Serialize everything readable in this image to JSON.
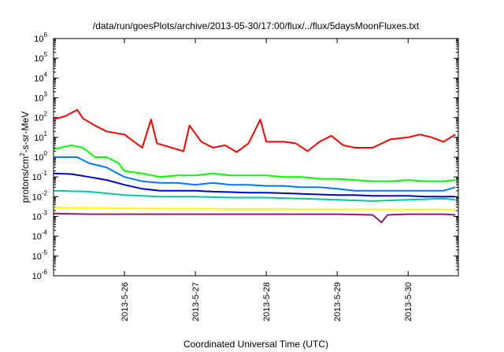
{
  "chart_data": {
    "type": "line",
    "title": "/data/run/goesPlots/archive/2013-05-30/17:00/flux/../flux/5daysMoonFluxes.txt",
    "xlabel": "Coordinated Universal Time (UTC)",
    "ylabel": {
      "prefix": "protons/cm",
      "sup": "2",
      "suffix": "-s-sr-MeV"
    },
    "y_scale": "log",
    "ylim": [
      1e-06,
      1000000.0
    ],
    "y_ticks": [
      {
        "base": "10",
        "exp": "-6"
      },
      {
        "base": "10",
        "exp": "-5"
      },
      {
        "base": "10",
        "exp": "-4"
      },
      {
        "base": "10",
        "exp": "-3"
      },
      {
        "base": "10",
        "exp": "-2"
      },
      {
        "base": "10",
        "exp": "-1"
      },
      {
        "base": "10",
        "exp": "0"
      },
      {
        "base": "10",
        "exp": "1"
      },
      {
        "base": "10",
        "exp": "2"
      },
      {
        "base": "10",
        "exp": "3"
      },
      {
        "base": "10",
        "exp": "4"
      },
      {
        "base": "10",
        "exp": "5"
      },
      {
        "base": "10",
        "exp": "6"
      }
    ],
    "xlim": [
      "2013-05-25T00:00",
      "2013-05-30T17:00"
    ],
    "x_ticks": [
      "2013-5-26",
      "2013-5-27",
      "2013-5-28",
      "2013-5-29",
      "2013-5-30"
    ],
    "grid": false,
    "series": [
      {
        "color": "#ff0000",
        "points": [
          [
            "2013-05-25T00:00",
            80
          ],
          [
            "2013-05-25T04:00",
            120
          ],
          [
            "2013-05-25T08:00",
            250
          ],
          [
            "2013-05-25T10:00",
            90
          ],
          [
            "2013-05-25T14:00",
            40
          ],
          [
            "2013-05-25T18:00",
            20
          ],
          [
            "2013-05-26T00:00",
            14
          ],
          [
            "2013-05-26T04:00",
            5
          ],
          [
            "2013-05-26T06:00",
            3
          ],
          [
            "2013-05-26T09:00",
            80
          ],
          [
            "2013-05-26T11:00",
            5
          ],
          [
            "2013-05-26T16:00",
            3
          ],
          [
            "2013-05-26T20:00",
            2
          ],
          [
            "2013-05-26T22:00",
            40
          ],
          [
            "2013-05-27T02:00",
            6
          ],
          [
            "2013-05-27T06:00",
            3
          ],
          [
            "2013-05-27T10:00",
            4
          ],
          [
            "2013-05-27T14:00",
            1.8
          ],
          [
            "2013-05-27T18:00",
            5
          ],
          [
            "2013-05-27T22:00",
            80
          ],
          [
            "2013-05-28T00:00",
            6
          ],
          [
            "2013-05-28T06:00",
            6
          ],
          [
            "2013-05-28T10:00",
            5
          ],
          [
            "2013-05-28T14:00",
            2
          ],
          [
            "2013-05-28T18:00",
            6
          ],
          [
            "2013-05-28T22:00",
            12
          ],
          [
            "2013-05-29T02:00",
            4
          ],
          [
            "2013-05-29T06:00",
            3
          ],
          [
            "2013-05-29T12:00",
            3
          ],
          [
            "2013-05-29T18:00",
            8
          ],
          [
            "2013-05-30T00:00",
            10
          ],
          [
            "2013-05-30T04:00",
            14
          ],
          [
            "2013-05-30T08:00",
            10
          ],
          [
            "2013-05-30T12:00",
            6
          ],
          [
            "2013-05-30T16:00",
            14
          ]
        ]
      },
      {
        "color": "#00ff00",
        "points": [
          [
            "2013-05-25T00:00",
            2.5
          ],
          [
            "2013-05-25T06:00",
            4
          ],
          [
            "2013-05-25T10:00",
            3
          ],
          [
            "2013-05-25T14:00",
            1
          ],
          [
            "2013-05-25T18:00",
            1
          ],
          [
            "2013-05-25T22:00",
            0.5
          ],
          [
            "2013-05-26T00:00",
            0.2
          ],
          [
            "2013-05-26T06:00",
            0.15
          ],
          [
            "2013-05-26T12:00",
            0.1
          ],
          [
            "2013-05-26T18:00",
            0.12
          ],
          [
            "2013-05-27T00:00",
            0.12
          ],
          [
            "2013-05-27T06:00",
            0.15
          ],
          [
            "2013-05-27T12:00",
            0.12
          ],
          [
            "2013-05-27T18:00",
            0.12
          ],
          [
            "2013-05-28T00:00",
            0.12
          ],
          [
            "2013-05-28T06:00",
            0.1
          ],
          [
            "2013-05-28T12:00",
            0.1
          ],
          [
            "2013-05-28T18:00",
            0.08
          ],
          [
            "2013-05-29T00:00",
            0.08
          ],
          [
            "2013-05-29T06:00",
            0.07
          ],
          [
            "2013-05-29T12:00",
            0.06
          ],
          [
            "2013-05-29T18:00",
            0.06
          ],
          [
            "2013-05-30T00:00",
            0.07
          ],
          [
            "2013-05-30T06:00",
            0.06
          ],
          [
            "2013-05-30T12:00",
            0.06
          ],
          [
            "2013-05-30T16:00",
            0.07
          ]
        ]
      },
      {
        "color": "#0077ff",
        "points": [
          [
            "2013-05-25T00:00",
            1
          ],
          [
            "2013-05-25T08:00",
            1
          ],
          [
            "2013-05-25T12:00",
            0.5
          ],
          [
            "2013-05-25T18:00",
            0.3
          ],
          [
            "2013-05-26T00:00",
            0.1
          ],
          [
            "2013-05-26T06:00",
            0.06
          ],
          [
            "2013-05-26T12:00",
            0.05
          ],
          [
            "2013-05-26T18:00",
            0.05
          ],
          [
            "2013-05-27T00:00",
            0.04
          ],
          [
            "2013-05-27T06:00",
            0.05
          ],
          [
            "2013-05-27T12:00",
            0.04
          ],
          [
            "2013-05-27T18:00",
            0.04
          ],
          [
            "2013-05-28T00:00",
            0.035
          ],
          [
            "2013-05-28T06:00",
            0.035
          ],
          [
            "2013-05-28T12:00",
            0.03
          ],
          [
            "2013-05-28T18:00",
            0.03
          ],
          [
            "2013-05-29T00:00",
            0.025
          ],
          [
            "2013-05-29T06:00",
            0.02
          ],
          [
            "2013-05-29T12:00",
            0.02
          ],
          [
            "2013-05-29T18:00",
            0.02
          ],
          [
            "2013-05-30T00:00",
            0.02
          ],
          [
            "2013-05-30T06:00",
            0.02
          ],
          [
            "2013-05-30T12:00",
            0.02
          ],
          [
            "2013-05-30T16:00",
            0.03
          ]
        ]
      },
      {
        "color": "#0000d0",
        "points": [
          [
            "2013-05-25T00:00",
            0.15
          ],
          [
            "2013-05-25T06:00",
            0.14
          ],
          [
            "2013-05-25T12:00",
            0.1
          ],
          [
            "2013-05-25T18:00",
            0.07
          ],
          [
            "2013-05-26T00:00",
            0.04
          ],
          [
            "2013-05-26T06:00",
            0.025
          ],
          [
            "2013-05-26T12:00",
            0.02
          ],
          [
            "2013-05-26T18:00",
            0.02
          ],
          [
            "2013-05-27T00:00",
            0.02
          ],
          [
            "2013-05-27T06:00",
            0.018
          ],
          [
            "2013-05-27T12:00",
            0.017
          ],
          [
            "2013-05-27T18:00",
            0.016
          ],
          [
            "2013-05-28T00:00",
            0.016
          ],
          [
            "2013-05-28T06:00",
            0.015
          ],
          [
            "2013-05-28T12:00",
            0.014
          ],
          [
            "2013-05-28T18:00",
            0.013
          ],
          [
            "2013-05-29T00:00",
            0.012
          ],
          [
            "2013-05-29T06:00",
            0.012
          ],
          [
            "2013-05-29T12:00",
            0.011
          ],
          [
            "2013-05-29T18:00",
            0.011
          ],
          [
            "2013-05-30T00:00",
            0.011
          ],
          [
            "2013-05-30T06:00",
            0.01
          ],
          [
            "2013-05-30T12:00",
            0.01
          ],
          [
            "2013-05-30T16:00",
            0.01
          ]
        ]
      },
      {
        "color": "#00c8a0",
        "points": [
          [
            "2013-05-25T00:00",
            0.02
          ],
          [
            "2013-05-25T12:00",
            0.018
          ],
          [
            "2013-05-26T00:00",
            0.012
          ],
          [
            "2013-05-26T12:00",
            0.01
          ],
          [
            "2013-05-27T00:00",
            0.01
          ],
          [
            "2013-05-27T12:00",
            0.009
          ],
          [
            "2013-05-28T00:00",
            0.009
          ],
          [
            "2013-05-28T12:00",
            0.008
          ],
          [
            "2013-05-29T00:00",
            0.007
          ],
          [
            "2013-05-29T12:00",
            0.006
          ],
          [
            "2013-05-30T00:00",
            0.007
          ],
          [
            "2013-05-30T12:00",
            0.008
          ],
          [
            "2013-05-30T16:00",
            0.007
          ]
        ]
      },
      {
        "color": "#ffff00",
        "points": [
          [
            "2013-05-25T00:00",
            0.0028
          ],
          [
            "2013-05-25T12:00",
            0.0027
          ],
          [
            "2013-05-26T00:00",
            0.0026
          ],
          [
            "2013-05-26T12:00",
            0.0025
          ],
          [
            "2013-05-27T00:00",
            0.0025
          ],
          [
            "2013-05-27T12:00",
            0.0024
          ],
          [
            "2013-05-28T00:00",
            0.0024
          ],
          [
            "2013-05-28T12:00",
            0.0023
          ],
          [
            "2013-05-29T00:00",
            0.0023
          ],
          [
            "2013-05-29T12:00",
            0.0023
          ],
          [
            "2013-05-30T00:00",
            0.0022
          ],
          [
            "2013-05-30T12:00",
            0.0023
          ],
          [
            "2013-05-30T16:00",
            0.0022
          ]
        ]
      },
      {
        "color": "#8b2060",
        "points": [
          [
            "2013-05-25T00:00",
            0.0014
          ],
          [
            "2013-05-25T12:00",
            0.0013
          ],
          [
            "2013-05-26T00:00",
            0.0013
          ],
          [
            "2013-05-26T12:00",
            0.0013
          ],
          [
            "2013-05-27T00:00",
            0.0013
          ],
          [
            "2013-05-27T12:00",
            0.0013
          ],
          [
            "2013-05-28T00:00",
            0.0013
          ],
          [
            "2013-05-28T12:00",
            0.0013
          ],
          [
            "2013-05-29T00:00",
            0.0013
          ],
          [
            "2013-05-29T12:00",
            0.0012
          ],
          [
            "2013-05-29T15:00",
            0.0005
          ],
          [
            "2013-05-29T17:00",
            0.0012
          ],
          [
            "2013-05-30T00:00",
            0.0013
          ],
          [
            "2013-05-30T12:00",
            0.0013
          ],
          [
            "2013-05-30T16:00",
            0.0012
          ]
        ]
      }
    ]
  }
}
